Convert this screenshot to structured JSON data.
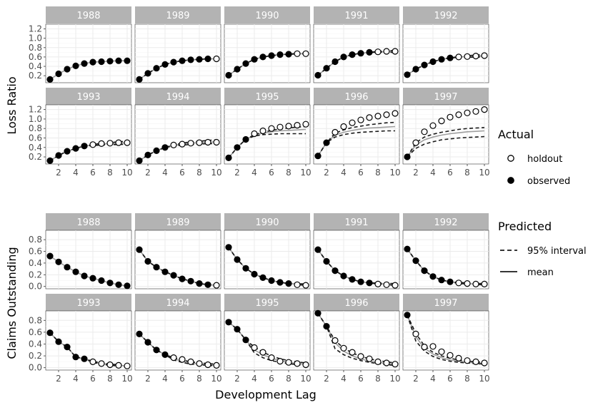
{
  "chart_data": [
    {
      "type": "line",
      "title": "",
      "ylabel": "Loss Ratio",
      "xlabel": "",
      "xlim": [
        0.5,
        10.5
      ],
      "ylim": [
        0.05,
        1.3
      ],
      "x_ticks": [
        2,
        4,
        6,
        8,
        10
      ],
      "y_ticks": [
        0.2,
        0.4,
        0.6,
        0.8,
        1.0,
        1.2
      ],
      "y_tick_labels": [
        "0.2",
        "0.4",
        "0.6",
        "0.8",
        "1.0",
        "1.2"
      ],
      "facets": [
        {
          "year": "1988",
          "n_obs": 10,
          "actual": [
            0.12,
            0.24,
            0.34,
            0.41,
            0.46,
            0.49,
            0.5,
            0.51,
            0.52,
            0.52
          ],
          "mean": [
            0.12,
            0.24,
            0.34,
            0.41,
            0.46,
            0.49,
            0.5,
            0.51,
            0.52,
            0.52
          ],
          "lower": null,
          "upper": null
        },
        {
          "year": "1989",
          "n_obs": 9,
          "actual": [
            0.12,
            0.25,
            0.36,
            0.44,
            0.49,
            0.52,
            0.54,
            0.55,
            0.56,
            0.56
          ],
          "mean": [
            0.12,
            0.25,
            0.36,
            0.44,
            0.49,
            0.52,
            0.54,
            0.55,
            0.56,
            0.56
          ],
          "lower": [
            0.12,
            0.25,
            0.36,
            0.44,
            0.49,
            0.52,
            0.54,
            0.55,
            0.56,
            0.55
          ],
          "upper": [
            0.12,
            0.25,
            0.36,
            0.44,
            0.49,
            0.52,
            0.54,
            0.55,
            0.56,
            0.57
          ]
        },
        {
          "year": "1990",
          "n_obs": 8,
          "actual": [
            0.21,
            0.34,
            0.46,
            0.55,
            0.6,
            0.63,
            0.65,
            0.66,
            0.67,
            0.67
          ],
          "mean": [
            0.21,
            0.34,
            0.46,
            0.55,
            0.6,
            0.63,
            0.65,
            0.66,
            0.67,
            0.67
          ],
          "lower": [
            0.21,
            0.34,
            0.46,
            0.55,
            0.6,
            0.63,
            0.65,
            0.66,
            0.66,
            0.66
          ],
          "upper": [
            0.21,
            0.34,
            0.46,
            0.55,
            0.6,
            0.63,
            0.65,
            0.66,
            0.68,
            0.68
          ]
        },
        {
          "year": "1991",
          "n_obs": 7,
          "actual": [
            0.21,
            0.36,
            0.5,
            0.6,
            0.65,
            0.68,
            0.7,
            0.71,
            0.72,
            0.72
          ],
          "mean": [
            0.21,
            0.36,
            0.5,
            0.6,
            0.65,
            0.68,
            0.7,
            0.71,
            0.71,
            0.72
          ],
          "lower": [
            0.21,
            0.36,
            0.5,
            0.6,
            0.65,
            0.68,
            0.7,
            0.7,
            0.7,
            0.7
          ],
          "upper": [
            0.21,
            0.36,
            0.5,
            0.6,
            0.65,
            0.68,
            0.7,
            0.72,
            0.73,
            0.74
          ]
        },
        {
          "year": "1992",
          "n_obs": 6,
          "actual": [
            0.22,
            0.34,
            0.43,
            0.5,
            0.55,
            0.58,
            0.6,
            0.61,
            0.62,
            0.63
          ],
          "mean": [
            0.22,
            0.34,
            0.43,
            0.5,
            0.55,
            0.58,
            0.6,
            0.61,
            0.62,
            0.62
          ],
          "lower": [
            0.22,
            0.34,
            0.43,
            0.5,
            0.55,
            0.58,
            0.59,
            0.59,
            0.6,
            0.6
          ],
          "upper": [
            0.22,
            0.34,
            0.43,
            0.5,
            0.55,
            0.58,
            0.61,
            0.63,
            0.64,
            0.65
          ]
        },
        {
          "year": "1993",
          "n_obs": 5,
          "actual": [
            0.12,
            0.23,
            0.32,
            0.38,
            0.43,
            0.46,
            0.48,
            0.49,
            0.5,
            0.5
          ],
          "mean": [
            0.12,
            0.23,
            0.32,
            0.38,
            0.43,
            0.45,
            0.47,
            0.48,
            0.49,
            0.5
          ],
          "lower": [
            0.12,
            0.23,
            0.32,
            0.38,
            0.43,
            0.44,
            0.45,
            0.46,
            0.46,
            0.47
          ],
          "upper": [
            0.12,
            0.23,
            0.32,
            0.38,
            0.43,
            0.46,
            0.49,
            0.5,
            0.52,
            0.53
          ]
        },
        {
          "year": "1994",
          "n_obs": 4,
          "actual": [
            0.12,
            0.24,
            0.33,
            0.4,
            0.45,
            0.47,
            0.49,
            0.5,
            0.51,
            0.51
          ],
          "mean": [
            0.12,
            0.24,
            0.33,
            0.4,
            0.44,
            0.47,
            0.49,
            0.5,
            0.51,
            0.52
          ],
          "lower": [
            0.12,
            0.24,
            0.33,
            0.4,
            0.43,
            0.45,
            0.46,
            0.47,
            0.48,
            0.48
          ],
          "upper": [
            0.12,
            0.24,
            0.33,
            0.4,
            0.45,
            0.49,
            0.52,
            0.53,
            0.55,
            0.56
          ]
        },
        {
          "year": "1995",
          "n_obs": 3,
          "actual": [
            0.18,
            0.4,
            0.57,
            0.69,
            0.75,
            0.8,
            0.83,
            0.85,
            0.87,
            0.89
          ],
          "mean": [
            0.18,
            0.4,
            0.57,
            0.66,
            0.7,
            0.73,
            0.75,
            0.76,
            0.77,
            0.78
          ],
          "lower": [
            0.18,
            0.4,
            0.57,
            0.64,
            0.67,
            0.68,
            0.69,
            0.69,
            0.69,
            0.69
          ],
          "upper": [
            0.18,
            0.4,
            0.57,
            0.67,
            0.72,
            0.76,
            0.79,
            0.81,
            0.83,
            0.84
          ]
        },
        {
          "year": "1996",
          "n_obs": 2,
          "actual": [
            0.22,
            0.5,
            0.72,
            0.84,
            0.92,
            0.98,
            1.03,
            1.06,
            1.09,
            1.12
          ],
          "mean": [
            0.22,
            0.5,
            0.66,
            0.72,
            0.76,
            0.79,
            0.81,
            0.82,
            0.83,
            0.84
          ],
          "lower": [
            0.22,
            0.5,
            0.62,
            0.67,
            0.7,
            0.72,
            0.73,
            0.74,
            0.75,
            0.75
          ],
          "upper": [
            0.22,
            0.5,
            0.7,
            0.77,
            0.82,
            0.85,
            0.88,
            0.9,
            0.92,
            0.93
          ]
        },
        {
          "year": "1997",
          "n_obs": 1,
          "actual": [
            0.2,
            0.5,
            0.73,
            0.86,
            0.96,
            1.04,
            1.09,
            1.13,
            1.16,
            1.2
          ],
          "mean": [
            0.2,
            0.45,
            0.56,
            0.62,
            0.66,
            0.69,
            0.71,
            0.73,
            0.74,
            0.75
          ],
          "lower": [
            0.2,
            0.38,
            0.47,
            0.52,
            0.56,
            0.58,
            0.6,
            0.61,
            0.62,
            0.63
          ],
          "upper": [
            0.2,
            0.5,
            0.62,
            0.68,
            0.72,
            0.75,
            0.78,
            0.8,
            0.81,
            0.82
          ]
        }
      ]
    },
    {
      "type": "line",
      "title": "",
      "ylabel": "Claims Outstanding",
      "xlabel": "Development Lag",
      "xlim": [
        0.5,
        10.5
      ],
      "ylim": [
        -0.04,
        0.96
      ],
      "x_ticks": [
        2,
        4,
        6,
        8,
        10
      ],
      "y_ticks": [
        0.0,
        0.2,
        0.4,
        0.6,
        0.8
      ],
      "y_tick_labels": [
        "0.0",
        "0.2",
        "0.4",
        "0.6",
        "0.8"
      ],
      "facets": [
        {
          "year": "1988",
          "n_obs": 10,
          "actual": [
            0.52,
            0.42,
            0.33,
            0.25,
            0.18,
            0.14,
            0.1,
            0.06,
            0.03,
            0.01
          ],
          "mean": [
            0.52,
            0.42,
            0.33,
            0.25,
            0.18,
            0.14,
            0.1,
            0.06,
            0.03,
            0.01
          ],
          "lower": null,
          "upper": null
        },
        {
          "year": "1989",
          "n_obs": 9,
          "actual": [
            0.63,
            0.43,
            0.33,
            0.25,
            0.19,
            0.13,
            0.09,
            0.05,
            0.03,
            0.02
          ],
          "mean": [
            0.63,
            0.43,
            0.33,
            0.25,
            0.19,
            0.13,
            0.09,
            0.05,
            0.03,
            0.02
          ],
          "lower": [
            0.63,
            0.43,
            0.33,
            0.25,
            0.19,
            0.13,
            0.09,
            0.05,
            0.03,
            0.01
          ],
          "upper": [
            0.63,
            0.43,
            0.33,
            0.25,
            0.19,
            0.13,
            0.09,
            0.05,
            0.03,
            0.03
          ]
        },
        {
          "year": "1990",
          "n_obs": 8,
          "actual": [
            0.67,
            0.46,
            0.31,
            0.21,
            0.15,
            0.1,
            0.07,
            0.05,
            0.03,
            0.02
          ],
          "mean": [
            0.67,
            0.46,
            0.31,
            0.21,
            0.15,
            0.1,
            0.07,
            0.05,
            0.04,
            0.03
          ],
          "lower": [
            0.67,
            0.46,
            0.31,
            0.21,
            0.15,
            0.1,
            0.07,
            0.05,
            0.03,
            0.02
          ],
          "upper": [
            0.67,
            0.46,
            0.31,
            0.21,
            0.15,
            0.1,
            0.07,
            0.05,
            0.05,
            0.04
          ]
        },
        {
          "year": "1991",
          "n_obs": 7,
          "actual": [
            0.63,
            0.43,
            0.27,
            0.18,
            0.12,
            0.08,
            0.06,
            0.04,
            0.03,
            0.02
          ],
          "mean": [
            0.63,
            0.43,
            0.27,
            0.18,
            0.12,
            0.08,
            0.06,
            0.05,
            0.04,
            0.03
          ],
          "lower": [
            0.63,
            0.43,
            0.27,
            0.18,
            0.12,
            0.08,
            0.06,
            0.04,
            0.03,
            0.02
          ],
          "upper": [
            0.63,
            0.43,
            0.27,
            0.18,
            0.12,
            0.08,
            0.06,
            0.06,
            0.05,
            0.05
          ]
        },
        {
          "year": "1992",
          "n_obs": 6,
          "actual": [
            0.64,
            0.44,
            0.27,
            0.17,
            0.11,
            0.08,
            0.06,
            0.05,
            0.04,
            0.04
          ],
          "mean": [
            0.64,
            0.44,
            0.27,
            0.17,
            0.11,
            0.08,
            0.06,
            0.05,
            0.04,
            0.04
          ],
          "lower": [
            0.64,
            0.44,
            0.27,
            0.17,
            0.11,
            0.08,
            0.05,
            0.04,
            0.03,
            0.03
          ],
          "upper": [
            0.64,
            0.44,
            0.27,
            0.17,
            0.11,
            0.08,
            0.07,
            0.06,
            0.05,
            0.05
          ]
        },
        {
          "year": "1993",
          "n_obs": 5,
          "actual": [
            0.59,
            0.44,
            0.35,
            0.18,
            0.15,
            0.1,
            0.07,
            0.05,
            0.04,
            0.03
          ],
          "mean": [
            0.59,
            0.44,
            0.35,
            0.18,
            0.15,
            0.1,
            0.07,
            0.05,
            0.04,
            0.03
          ],
          "lower": [
            0.59,
            0.44,
            0.35,
            0.18,
            0.15,
            0.09,
            0.06,
            0.04,
            0.03,
            0.02
          ],
          "upper": [
            0.59,
            0.44,
            0.35,
            0.18,
            0.15,
            0.11,
            0.08,
            0.06,
            0.05,
            0.04
          ]
        },
        {
          "year": "1994",
          "n_obs": 4,
          "actual": [
            0.57,
            0.43,
            0.3,
            0.22,
            0.17,
            0.14,
            0.1,
            0.07,
            0.05,
            0.04
          ],
          "mean": [
            0.57,
            0.43,
            0.3,
            0.22,
            0.15,
            0.11,
            0.08,
            0.06,
            0.05,
            0.04
          ],
          "lower": [
            0.57,
            0.43,
            0.3,
            0.22,
            0.13,
            0.09,
            0.06,
            0.05,
            0.04,
            0.03
          ],
          "upper": [
            0.57,
            0.43,
            0.3,
            0.22,
            0.17,
            0.13,
            0.1,
            0.08,
            0.07,
            0.06
          ]
        },
        {
          "year": "1995",
          "n_obs": 3,
          "actual": [
            0.77,
            0.65,
            0.47,
            0.34,
            0.26,
            0.17,
            0.11,
            0.09,
            0.07,
            0.05
          ],
          "mean": [
            0.77,
            0.65,
            0.47,
            0.3,
            0.22,
            0.16,
            0.12,
            0.09,
            0.07,
            0.06
          ],
          "lower": [
            0.77,
            0.65,
            0.47,
            0.25,
            0.17,
            0.12,
            0.09,
            0.07,
            0.05,
            0.04
          ],
          "upper": [
            0.77,
            0.65,
            0.47,
            0.35,
            0.26,
            0.2,
            0.15,
            0.12,
            0.1,
            0.08
          ]
        },
        {
          "year": "1996",
          "n_obs": 2,
          "actual": [
            0.92,
            0.7,
            0.46,
            0.33,
            0.26,
            0.19,
            0.15,
            0.1,
            0.08,
            0.06
          ],
          "mean": [
            0.92,
            0.7,
            0.42,
            0.28,
            0.2,
            0.15,
            0.11,
            0.09,
            0.07,
            0.06
          ],
          "lower": [
            0.92,
            0.7,
            0.32,
            0.22,
            0.16,
            0.12,
            0.09,
            0.07,
            0.05,
            0.04
          ],
          "upper": [
            0.92,
            0.7,
            0.46,
            0.33,
            0.25,
            0.19,
            0.15,
            0.12,
            0.1,
            0.08
          ]
        },
        {
          "year": "1997",
          "n_obs": 1,
          "actual": [
            0.89,
            0.57,
            0.35,
            0.36,
            0.27,
            0.21,
            0.16,
            0.12,
            0.1,
            0.08
          ],
          "mean": [
            0.89,
            0.52,
            0.33,
            0.23,
            0.17,
            0.13,
            0.11,
            0.09,
            0.08,
            0.07
          ],
          "lower": [
            0.89,
            0.45,
            0.28,
            0.19,
            0.14,
            0.11,
            0.09,
            0.08,
            0.07,
            0.06
          ],
          "upper": [
            0.89,
            0.58,
            0.37,
            0.26,
            0.2,
            0.16,
            0.13,
            0.11,
            0.1,
            0.09
          ]
        }
      ]
    }
  ],
  "legend": {
    "actual_title": "Actual",
    "actual_items": [
      "holdout",
      "observed"
    ],
    "predicted_title": "Predicted",
    "predicted_items": [
      "95% interval",
      "mean"
    ]
  },
  "colors": {
    "strip": "#b3b3b3",
    "grid_major": "#ebebeb",
    "grid_minor": "#f5f5f5",
    "mean_line": "#9e9e9e",
    "interval_line": "#1a1a1a",
    "point": "#000000",
    "axis_text": "#4d4d4d"
  }
}
